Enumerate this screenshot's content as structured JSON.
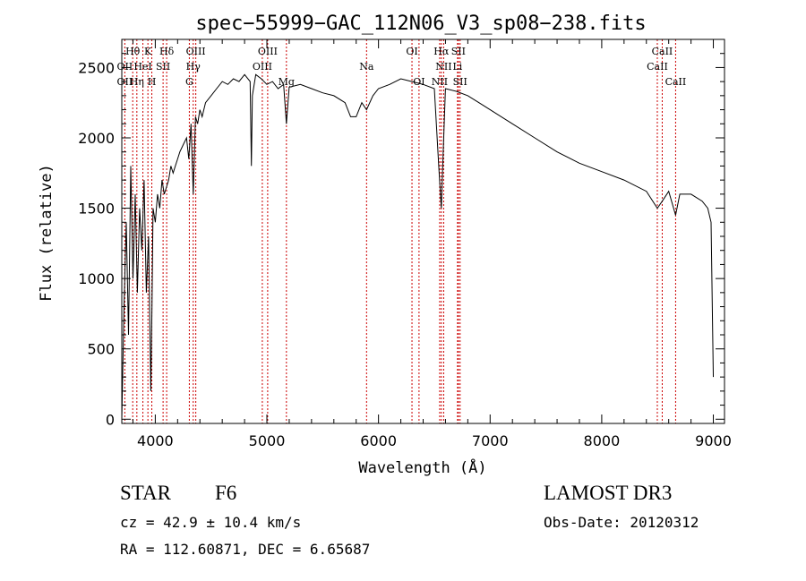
{
  "chart_data": {
    "type": "line",
    "title": "spec−55999−GAC_112N06_V3_sp08−238.fits",
    "xlabel": "Wavelength (Å)",
    "ylabel": "Flux (relative)",
    "xlim": [
      3700,
      9100
    ],
    "ylim": [
      -30,
      2700
    ],
    "xticks": [
      4000,
      5000,
      6000,
      7000,
      8000,
      9000
    ],
    "yticks": [
      0,
      500,
      1000,
      1500,
      2000,
      2500
    ],
    "series": [
      {
        "name": "flux",
        "x": [
          3700,
          3720,
          3740,
          3760,
          3780,
          3800,
          3820,
          3840,
          3860,
          3880,
          3900,
          3920,
          3940,
          3960,
          3970,
          3980,
          4000,
          4020,
          4040,
          4060,
          4080,
          4100,
          4120,
          4140,
          4160,
          4180,
          4200,
          4220,
          4250,
          4280,
          4300,
          4320,
          4340,
          4360,
          4380,
          4400,
          4420,
          4450,
          4500,
          4550,
          4600,
          4650,
          4700,
          4750,
          4800,
          4850,
          4861,
          4870,
          4900,
          4950,
          5000,
          5050,
          5100,
          5150,
          5175,
          5200,
          5300,
          5400,
          5500,
          5600,
          5700,
          5750,
          5800,
          5850,
          5893,
          5950,
          6000,
          6100,
          6200,
          6300,
          6400,
          6500,
          6540,
          6563,
          6580,
          6600,
          6700,
          6800,
          6900,
          7000,
          7200,
          7400,
          7600,
          7800,
          8000,
          8200,
          8400,
          8498,
          8542,
          8600,
          8662,
          8700,
          8800,
          8900,
          8950,
          8980,
          9000
        ],
        "y": [
          0,
          800,
          1400,
          600,
          1800,
          1000,
          1600,
          900,
          1500,
          1200,
          1700,
          900,
          1300,
          200,
          800,
          1500,
          1400,
          1600,
          1500,
          1700,
          1600,
          1650,
          1700,
          1800,
          1750,
          1800,
          1850,
          1900,
          1950,
          2000,
          1850,
          2100,
          1600,
          2150,
          2100,
          2200,
          2150,
          2250,
          2300,
          2350,
          2400,
          2380,
          2420,
          2400,
          2450,
          2400,
          1800,
          2300,
          2450,
          2420,
          2380,
          2400,
          2350,
          2380,
          2100,
          2360,
          2380,
          2350,
          2320,
          2300,
          2250,
          2150,
          2150,
          2250,
          2200,
          2300,
          2350,
          2380,
          2420,
          2400,
          2380,
          2350,
          1800,
          1500,
          1900,
          2350,
          2330,
          2300,
          2250,
          2200,
          2100,
          2000,
          1900,
          1820,
          1760,
          1700,
          1620,
          1500,
          1550,
          1620,
          1450,
          1600,
          1600,
          1550,
          1500,
          1400,
          300
        ]
      }
    ],
    "lines": [
      {
        "name": "Hθ",
        "x": 3798,
        "row": 0
      },
      {
        "name": "OII",
        "x": 3727,
        "row": 1
      },
      {
        "name": "OII",
        "x": 3727,
        "row": 2
      },
      {
        "name": "Hη",
        "x": 3835,
        "row": 2
      },
      {
        "name": "K",
        "x": 3934,
        "row": 0
      },
      {
        "name": "HeI",
        "x": 3889,
        "row": 1
      },
      {
        "name": "H",
        "x": 3969,
        "row": 2
      },
      {
        "name": "SII",
        "x": 4070,
        "row": 1
      },
      {
        "name": "Hδ",
        "x": 4102,
        "row": 0
      },
      {
        "name": "OIII",
        "x": 4363,
        "row": 0
      },
      {
        "name": "Hγ",
        "x": 4340,
        "row": 1
      },
      {
        "name": "G",
        "x": 4305,
        "row": 2
      },
      {
        "name": "OIII",
        "x": 5007,
        "row": 0
      },
      {
        "name": "OIII",
        "x": 4959,
        "row": 1
      },
      {
        "name": "Mg",
        "x": 5175,
        "row": 2
      },
      {
        "name": "Na",
        "x": 5893,
        "row": 1
      },
      {
        "name": "OI",
        "x": 6300,
        "row": 0
      },
      {
        "name": "OI",
        "x": 6363,
        "row": 2
      },
      {
        "name": "Hα",
        "x": 6563,
        "row": 0
      },
      {
        "name": "SII",
        "x": 6716,
        "row": 0
      },
      {
        "name": "NII",
        "x": 6584,
        "row": 1
      },
      {
        "name": "Li",
        "x": 6708,
        "row": 1
      },
      {
        "name": "NII",
        "x": 6548,
        "row": 2
      },
      {
        "name": "SII",
        "x": 6731,
        "row": 2
      },
      {
        "name": "CaII",
        "x": 8542,
        "row": 0
      },
      {
        "name": "CaII",
        "x": 8498,
        "row": 1
      },
      {
        "name": "CaII",
        "x": 8662,
        "row": 2
      }
    ]
  },
  "info": {
    "class": "STAR",
    "subclass": "F6",
    "survey": "LAMOST DR3",
    "cz": "cz = 42.9 ± 10.4 km/s",
    "obs_date": "Obs-Date: 20120312",
    "coords": "RA = 112.60871, DEC =   6.65687"
  },
  "colors": {
    "line_marker": "#cc0000",
    "spectrum": "#000000"
  }
}
